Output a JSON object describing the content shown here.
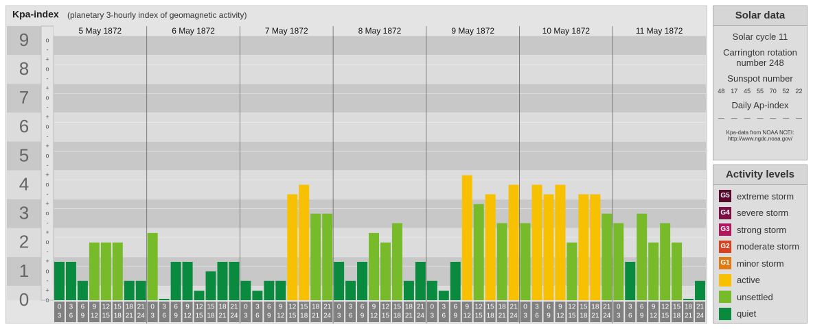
{
  "header": {
    "title": "Kpa-index",
    "subtitle": "(planetary 3-hourly index of geomagnetic activity)"
  },
  "chart_data": {
    "type": "bar",
    "days": [
      "5 May 1872",
      "6 May 1872",
      "7 May 1872",
      "8 May 1872",
      "9 May 1872",
      "10 May 1872",
      "11 May 1872"
    ],
    "time_labels": [
      [
        "0",
        "3"
      ],
      [
        "3",
        "6"
      ],
      [
        "6",
        "9"
      ],
      [
        "9",
        "12"
      ],
      [
        "12",
        "15"
      ],
      [
        "15",
        "18"
      ],
      [
        "18",
        "21"
      ],
      [
        "21",
        "24"
      ]
    ],
    "values": [
      1.33,
      1.33,
      0.67,
      2,
      2,
      2,
      0.67,
      0.67,
      2.33,
      0,
      1.33,
      1.33,
      0.33,
      1,
      1.33,
      1.33,
      0.67,
      0.33,
      0.67,
      0.67,
      3.67,
      4,
      3,
      3,
      1.33,
      0.67,
      1.33,
      2.33,
      2,
      2.67,
      0.67,
      1.33,
      0.67,
      0.33,
      1.33,
      4.33,
      3.33,
      3.67,
      2.67,
      4,
      2.67,
      4,
      3.67,
      4,
      2,
      3.67,
      3.67,
      3,
      2.67,
      1.33,
      3,
      2,
      2.67,
      2,
      0,
      0.67
    ],
    "colors": [
      "#0a8a3e",
      "#0a8a3e",
      "#0a8a3e",
      "#77bb2a",
      "#77bb2a",
      "#77bb2a",
      "#0a8a3e",
      "#0a8a3e",
      "#77bb2a",
      "#0a8a3e",
      "#0a8a3e",
      "#0a8a3e",
      "#0a8a3e",
      "#0a8a3e",
      "#0a8a3e",
      "#0a8a3e",
      "#0a8a3e",
      "#0a8a3e",
      "#0a8a3e",
      "#0a8a3e",
      "#f7c000",
      "#f7c000",
      "#77bb2a",
      "#77bb2a",
      "#0a8a3e",
      "#0a8a3e",
      "#0a8a3e",
      "#77bb2a",
      "#77bb2a",
      "#77bb2a",
      "#0a8a3e",
      "#0a8a3e",
      "#0a8a3e",
      "#0a8a3e",
      "#0a8a3e",
      "#f7c000",
      "#77bb2a",
      "#f7c000",
      "#77bb2a",
      "#f7c000",
      "#77bb2a",
      "#f7c000",
      "#f7c000",
      "#f7c000",
      "#77bb2a",
      "#f7c000",
      "#f7c000",
      "#77bb2a",
      "#77bb2a",
      "#0a8a3e",
      "#77bb2a",
      "#77bb2a",
      "#77bb2a",
      "#77bb2a",
      "#0a8a3e",
      "#0a8a3e"
    ],
    "ylim": [
      0,
      9.5
    ],
    "yticks": [
      0,
      1,
      2,
      3,
      4,
      5,
      6,
      7,
      8,
      9
    ],
    "sublevel_labels": [
      "o",
      "+",
      "-"
    ]
  },
  "solar_data": {
    "title": "Solar data",
    "cycle": "Solar cycle 11",
    "carrington": "Carrington rotation number 248",
    "sunspot_title": "Sunspot number",
    "sunspots": [
      48,
      17,
      45,
      55,
      70,
      52,
      22
    ],
    "ap_title": "Daily Ap-index",
    "ap": [
      "—",
      "—",
      "—",
      "—",
      "—",
      "—",
      "—"
    ],
    "source": "Kpa-data from NOAA NCEI:",
    "url": "http://www.ngdc.noaa.gov/"
  },
  "activity_levels": {
    "title": "Activity levels",
    "items": [
      {
        "badge": "G5",
        "label": "extreme storm",
        "color": "#5a0a2e"
      },
      {
        "badge": "G4",
        "label": "severe storm",
        "color": "#7c1044"
      },
      {
        "badge": "G3",
        "label": "strong storm",
        "color": "#b3185c"
      },
      {
        "badge": "G2",
        "label": "moderate storm",
        "color": "#d8401e"
      },
      {
        "badge": "G1",
        "label": "minor storm",
        "color": "#e07a12"
      },
      {
        "label": "active",
        "color": "#f7c000"
      },
      {
        "label": "unsettled",
        "color": "#77bb2a"
      },
      {
        "label": "quiet",
        "color": "#0a8a3e"
      }
    ]
  }
}
